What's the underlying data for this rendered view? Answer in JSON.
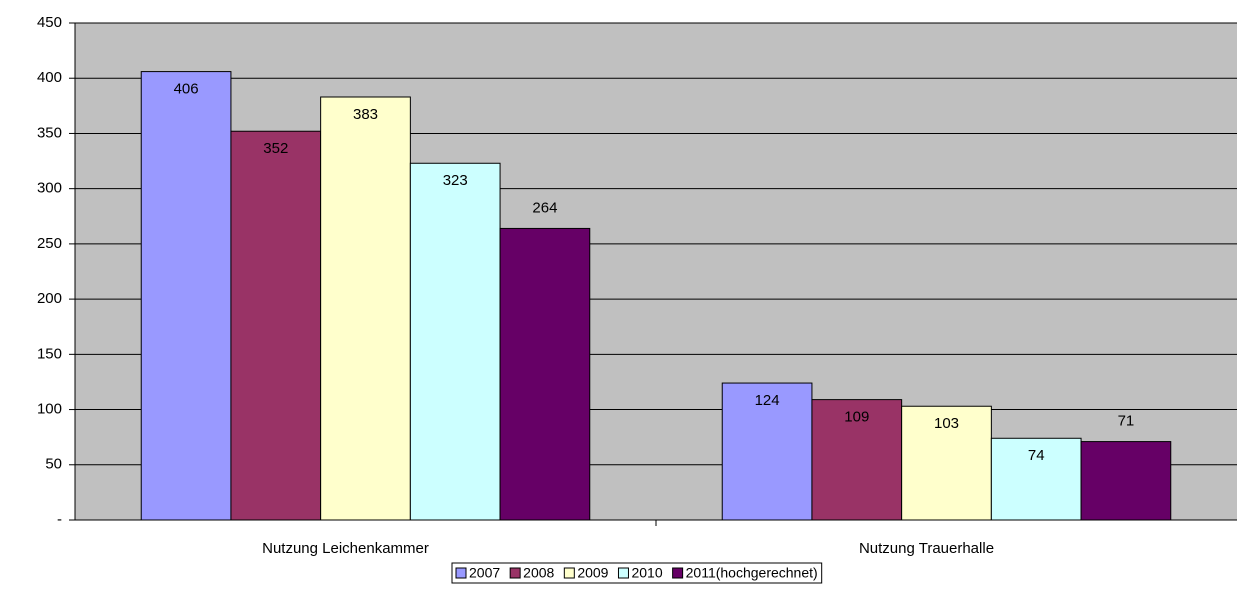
{
  "chart_data": {
    "type": "bar",
    "categories": [
      "Nutzung Leichenkammer",
      "Nutzung Trauerhalle"
    ],
    "series": [
      {
        "name": "2007",
        "color": "#9999ff",
        "values": [
          406,
          124
        ]
      },
      {
        "name": "2008",
        "color": "#993366",
        "values": [
          352,
          109
        ]
      },
      {
        "name": "2009",
        "color": "#ffffcc",
        "values": [
          383,
          103
        ]
      },
      {
        "name": "2010",
        "color": "#ccffff",
        "values": [
          323,
          74
        ]
      },
      {
        "name": "2011(hochgerechnet)",
        "color": "#660066",
        "values": [
          264,
          71
        ]
      }
    ],
    "ylim": [
      0,
      450
    ],
    "yticks": [
      {
        "value": 0,
        "label": "-"
      },
      50,
      100,
      150,
      200,
      250,
      300,
      350,
      400,
      450
    ],
    "grid": true,
    "legend": "bottom"
  }
}
